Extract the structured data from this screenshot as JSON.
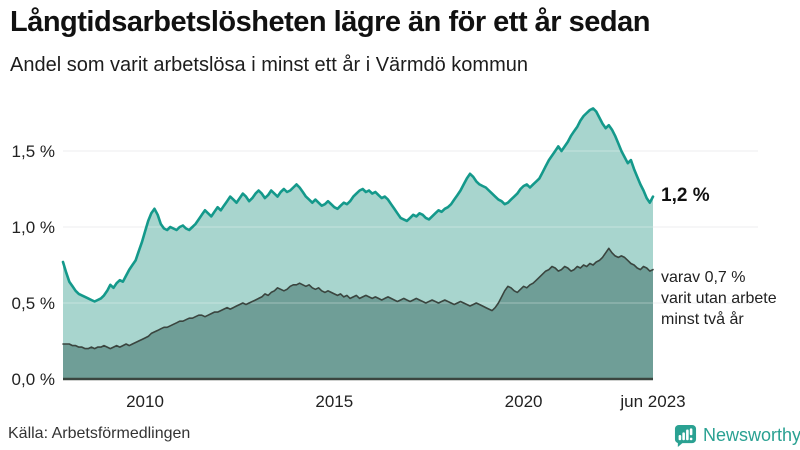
{
  "header": {
    "title": "Långtidsarbetslösheten lägre än för ett år sedan",
    "subtitle": "Andel som varit arbetslösa i minst ett år i Värmdö kommun"
  },
  "annotations": {
    "latest_total": "1,2 %",
    "two_year_note": "varav 0,7 %\nvarit utan arbete\nminst två år"
  },
  "footer": {
    "source": "Källa: Arbetsförmedlingen",
    "brand": "Newsworthy"
  },
  "colors": {
    "line_total": "#14998b",
    "fill_total": "#a8d5ce",
    "line_two_year": "#3a453f",
    "fill_two_year": "#6f9e97",
    "gridline": "#e2e2e6",
    "axis_text": "#222222",
    "brand_teal": "#2aa192"
  },
  "chart_data": {
    "type": "area",
    "title": "Andel som varit arbetslösa i minst ett år i Värmdö kommun",
    "unit": "%",
    "frequency": "monthly",
    "x_start": "2007-11",
    "x_end": "2023-06",
    "ylim": [
      0,
      1.85
    ],
    "grid": "horizontal",
    "legend_position": "annotations-right",
    "y_ticks": [
      {
        "label": "0,0 %",
        "value": 0
      },
      {
        "label": "0,5 %",
        "value": 0.5
      },
      {
        "label": "1,0 %",
        "value": 1.0
      },
      {
        "label": "1,5 %",
        "value": 1.5
      }
    ],
    "x_ticks": [
      {
        "label": "2010",
        "index": 26
      },
      {
        "label": "2015",
        "index": 86
      },
      {
        "label": "2020",
        "index": 146
      },
      {
        "label": "jun 2023",
        "index": 187
      }
    ],
    "series": [
      {
        "name": "Arbetslösa minst ett år",
        "latest_value": 1.2,
        "color": "#14998b",
        "fill": "#a8d5ce",
        "values": [
          0.77,
          0.7,
          0.64,
          0.61,
          0.58,
          0.56,
          0.55,
          0.54,
          0.53,
          0.52,
          0.51,
          0.52,
          0.53,
          0.55,
          0.58,
          0.62,
          0.6,
          0.63,
          0.65,
          0.64,
          0.68,
          0.72,
          0.75,
          0.78,
          0.84,
          0.9,
          0.97,
          1.04,
          1.09,
          1.12,
          1.08,
          1.02,
          0.99,
          0.98,
          1.0,
          0.99,
          0.98,
          1.0,
          1.01,
          0.99,
          0.98,
          1.0,
          1.02,
          1.05,
          1.08,
          1.11,
          1.09,
          1.07,
          1.1,
          1.13,
          1.11,
          1.14,
          1.17,
          1.2,
          1.18,
          1.16,
          1.19,
          1.22,
          1.2,
          1.17,
          1.19,
          1.22,
          1.24,
          1.22,
          1.19,
          1.21,
          1.24,
          1.22,
          1.2,
          1.23,
          1.25,
          1.23,
          1.24,
          1.26,
          1.28,
          1.26,
          1.23,
          1.2,
          1.18,
          1.16,
          1.18,
          1.16,
          1.14,
          1.15,
          1.17,
          1.15,
          1.13,
          1.12,
          1.14,
          1.16,
          1.15,
          1.17,
          1.2,
          1.22,
          1.24,
          1.25,
          1.23,
          1.24,
          1.22,
          1.23,
          1.21,
          1.19,
          1.2,
          1.18,
          1.15,
          1.12,
          1.09,
          1.06,
          1.05,
          1.04,
          1.06,
          1.08,
          1.07,
          1.09,
          1.08,
          1.06,
          1.05,
          1.07,
          1.09,
          1.11,
          1.1,
          1.12,
          1.13,
          1.15,
          1.18,
          1.21,
          1.24,
          1.28,
          1.32,
          1.35,
          1.33,
          1.3,
          1.28,
          1.27,
          1.26,
          1.24,
          1.22,
          1.2,
          1.18,
          1.17,
          1.15,
          1.16,
          1.18,
          1.2,
          1.22,
          1.25,
          1.27,
          1.28,
          1.26,
          1.28,
          1.3,
          1.32,
          1.36,
          1.4,
          1.44,
          1.47,
          1.5,
          1.53,
          1.5,
          1.53,
          1.56,
          1.6,
          1.63,
          1.66,
          1.7,
          1.73,
          1.75,
          1.77,
          1.78,
          1.76,
          1.72,
          1.68,
          1.65,
          1.67,
          1.64,
          1.6,
          1.55,
          1.5,
          1.46,
          1.42,
          1.44,
          1.38,
          1.33,
          1.28,
          1.24,
          1.19,
          1.16,
          1.2
        ]
      },
      {
        "name": "Arbetslösa minst två år",
        "latest_value": 0.7,
        "color": "#3a453f",
        "fill": "#6f9e97",
        "values": [
          0.23,
          0.23,
          0.23,
          0.22,
          0.22,
          0.21,
          0.21,
          0.2,
          0.2,
          0.21,
          0.2,
          0.21,
          0.21,
          0.22,
          0.21,
          0.2,
          0.21,
          0.22,
          0.21,
          0.22,
          0.23,
          0.22,
          0.23,
          0.24,
          0.25,
          0.26,
          0.27,
          0.28,
          0.3,
          0.31,
          0.32,
          0.33,
          0.34,
          0.34,
          0.35,
          0.36,
          0.37,
          0.38,
          0.38,
          0.39,
          0.4,
          0.4,
          0.41,
          0.42,
          0.42,
          0.41,
          0.42,
          0.43,
          0.44,
          0.44,
          0.45,
          0.46,
          0.47,
          0.46,
          0.47,
          0.48,
          0.49,
          0.5,
          0.49,
          0.5,
          0.51,
          0.52,
          0.53,
          0.54,
          0.56,
          0.55,
          0.57,
          0.58,
          0.6,
          0.59,
          0.58,
          0.59,
          0.61,
          0.62,
          0.62,
          0.63,
          0.62,
          0.61,
          0.62,
          0.6,
          0.59,
          0.6,
          0.58,
          0.57,
          0.58,
          0.57,
          0.56,
          0.55,
          0.56,
          0.54,
          0.55,
          0.53,
          0.54,
          0.55,
          0.53,
          0.54,
          0.55,
          0.54,
          0.53,
          0.54,
          0.53,
          0.52,
          0.53,
          0.54,
          0.53,
          0.52,
          0.51,
          0.52,
          0.53,
          0.52,
          0.51,
          0.52,
          0.53,
          0.52,
          0.51,
          0.5,
          0.51,
          0.52,
          0.51,
          0.5,
          0.51,
          0.52,
          0.51,
          0.5,
          0.49,
          0.5,
          0.51,
          0.5,
          0.49,
          0.48,
          0.49,
          0.5,
          0.49,
          0.48,
          0.47,
          0.46,
          0.45,
          0.47,
          0.5,
          0.54,
          0.58,
          0.61,
          0.6,
          0.58,
          0.57,
          0.59,
          0.61,
          0.6,
          0.62,
          0.63,
          0.65,
          0.67,
          0.69,
          0.71,
          0.72,
          0.74,
          0.73,
          0.71,
          0.72,
          0.74,
          0.73,
          0.71,
          0.72,
          0.74,
          0.73,
          0.75,
          0.74,
          0.76,
          0.75,
          0.77,
          0.78,
          0.8,
          0.83,
          0.86,
          0.83,
          0.81,
          0.8,
          0.81,
          0.8,
          0.78,
          0.76,
          0.75,
          0.73,
          0.72,
          0.74,
          0.73,
          0.71,
          0.72
        ]
      }
    ]
  }
}
